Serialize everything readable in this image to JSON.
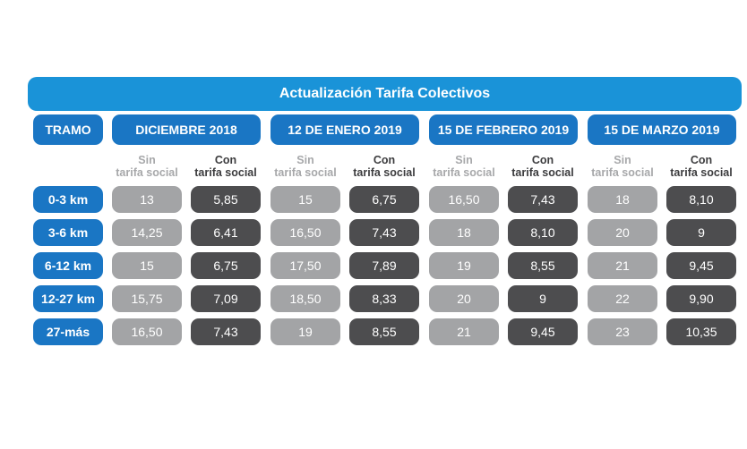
{
  "title": "Actualización Tarifa Colectivos",
  "header": {
    "tramo": "TRAMO",
    "periods": [
      "DICIEMBRE 2018",
      "12 DE ENERO 2019",
      "15 DE FEBRERO 2019",
      "15 DE MARZO 2019"
    ]
  },
  "subheaders": {
    "sin_line1": "Sin",
    "sin_line2": "tarifa social",
    "con_line1": "Con",
    "con_line2": "tarifa social"
  },
  "ranges": [
    "0-3 km",
    "3-6 km",
    "6-12 km",
    "12-27 km",
    "27-más"
  ],
  "rows": [
    [
      "13",
      "5,85",
      "15",
      "6,75",
      "16,50",
      "7,43",
      "18",
      "8,10"
    ],
    [
      "14,25",
      "6,41",
      "16,50",
      "7,43",
      "18",
      "8,10",
      "20",
      "9"
    ],
    [
      "15",
      "6,75",
      "17,50",
      "7,89",
      "19",
      "8,55",
      "21",
      "9,45"
    ],
    [
      "15,75",
      "7,09",
      "18,50",
      "8,33",
      "20",
      "9",
      "22",
      "9,90"
    ],
    [
      "16,50",
      "7,43",
      "19",
      "8,55",
      "21",
      "9,45",
      "23",
      "10,35"
    ]
  ],
  "colors": {
    "title_bar": "#1a93d8",
    "header_pill": "#1a76c4",
    "sin_cell": "#a3a4a6",
    "con_cell": "#4d4d4f"
  }
}
